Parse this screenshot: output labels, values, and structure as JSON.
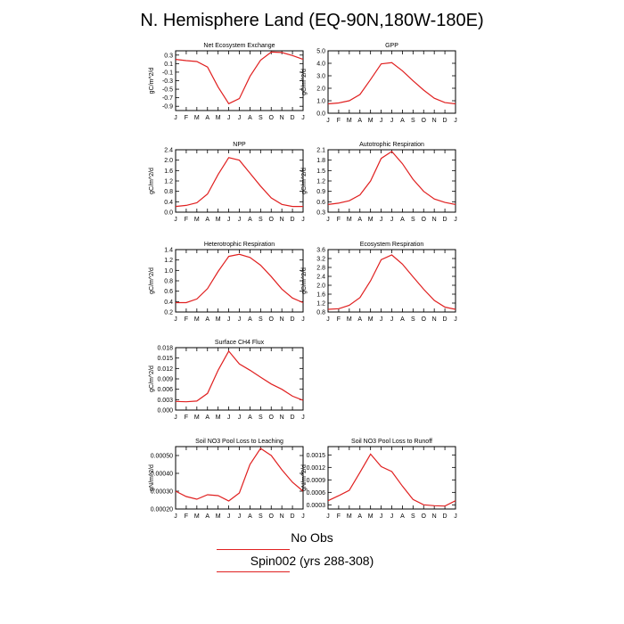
{
  "title": "N. Hemisphere Land (EQ-90N,180W-180E)",
  "legend": {
    "obs_label": "No Obs",
    "model_label": "Spin002 (yrs 288-308)",
    "model_color": "#e02020"
  },
  "chart_data": [
    {
      "type": "line",
      "title": "Net Ecosystem Exchange",
      "ylabel": "gC/m^2/d",
      "x": [
        "J",
        "F",
        "M",
        "A",
        "M",
        "J",
        "J",
        "A",
        "S",
        "O",
        "N",
        "D",
        "J"
      ],
      "ylim": [
        -1.0,
        0.4
      ],
      "yticks": [
        "0.3",
        "0.1",
        "-0.1",
        "-0.3",
        "-0.5",
        "-0.7",
        "-0.9"
      ],
      "ytick_values": [
        0.3,
        0.1,
        -0.1,
        -0.3,
        -0.5,
        -0.7,
        -0.9
      ],
      "series": [
        {
          "values": [
            0.2,
            0.17,
            0.15,
            0.02,
            -0.45,
            -0.84,
            -0.72,
            -0.2,
            0.18,
            0.37,
            0.36,
            0.29,
            0.2
          ]
        }
      ]
    },
    {
      "type": "line",
      "title": "GPP",
      "ylabel": "gC/m^2/d",
      "x": [
        "J",
        "F",
        "M",
        "A",
        "M",
        "J",
        "J",
        "A",
        "S",
        "O",
        "N",
        "D",
        "J"
      ],
      "ylim": [
        0.0,
        5.0
      ],
      "yticks": [
        "5.0",
        "4.0",
        "3.0",
        "2.0",
        "1.0",
        "0.0"
      ],
      "ytick_values": [
        5,
        4,
        3,
        2,
        1,
        0
      ],
      "series": [
        {
          "values": [
            0.75,
            0.82,
            1.0,
            1.5,
            2.7,
            3.95,
            4.05,
            3.4,
            2.6,
            1.85,
            1.2,
            0.85,
            0.75
          ]
        }
      ]
    },
    {
      "type": "line",
      "title": "NPP",
      "ylabel": "gC/m^2/d",
      "x": [
        "J",
        "F",
        "M",
        "A",
        "M",
        "J",
        "J",
        "A",
        "S",
        "O",
        "N",
        "D",
        "J"
      ],
      "ylim": [
        0.0,
        2.4
      ],
      "yticks": [
        "2.4",
        "2.0",
        "1.6",
        "1.2",
        "0.8",
        "0.4",
        "0.0"
      ],
      "ytick_values": [
        2.4,
        2.0,
        1.6,
        1.2,
        0.8,
        0.4,
        0.0
      ],
      "series": [
        {
          "values": [
            0.22,
            0.26,
            0.36,
            0.7,
            1.45,
            2.1,
            2.0,
            1.5,
            1.0,
            0.55,
            0.3,
            0.22,
            0.22
          ]
        }
      ]
    },
    {
      "type": "line",
      "title": "Autotrophic Respiration",
      "ylabel": "gC/m^2/d",
      "x": [
        "J",
        "F",
        "M",
        "A",
        "M",
        "J",
        "J",
        "A",
        "S",
        "O",
        "N",
        "D",
        "J"
      ],
      "ylim": [
        0.3,
        2.1
      ],
      "yticks": [
        "2.1",
        "1.8",
        "1.5",
        "1.2",
        "0.9",
        "0.6",
        "0.3"
      ],
      "ytick_values": [
        2.1,
        1.8,
        1.5,
        1.2,
        0.9,
        0.6,
        0.3
      ],
      "series": [
        {
          "values": [
            0.52,
            0.56,
            0.63,
            0.8,
            1.2,
            1.85,
            2.05,
            1.7,
            1.25,
            0.9,
            0.68,
            0.58,
            0.52
          ]
        }
      ]
    },
    {
      "type": "line",
      "title": "Heterotrophic Respiration",
      "ylabel": "gC/m^2/d",
      "x": [
        "J",
        "F",
        "M",
        "A",
        "M",
        "J",
        "J",
        "A",
        "S",
        "O",
        "N",
        "D",
        "J"
      ],
      "ylim": [
        0.2,
        1.4
      ],
      "yticks": [
        "1.4",
        "1.2",
        "1.0",
        "0.8",
        "0.6",
        "0.4",
        "0.2"
      ],
      "ytick_values": [
        1.4,
        1.2,
        1.0,
        0.8,
        0.6,
        0.4,
        0.2
      ],
      "series": [
        {
          "values": [
            0.38,
            0.38,
            0.45,
            0.65,
            0.98,
            1.27,
            1.31,
            1.25,
            1.1,
            0.88,
            0.64,
            0.47,
            0.38
          ]
        }
      ]
    },
    {
      "type": "line",
      "title": "Ecosystem Respiration",
      "ylabel": "gC/m^2/d",
      "x": [
        "J",
        "F",
        "M",
        "A",
        "M",
        "J",
        "J",
        "A",
        "S",
        "O",
        "N",
        "D",
        "J"
      ],
      "ylim": [
        0.8,
        3.6
      ],
      "yticks": [
        "3.6",
        "3.2",
        "2.8",
        "2.4",
        "2.0",
        "1.6",
        "1.2",
        "0.8"
      ],
      "ytick_values": [
        3.6,
        3.2,
        2.8,
        2.4,
        2.0,
        1.6,
        1.2,
        0.8
      ],
      "series": [
        {
          "values": [
            0.92,
            0.95,
            1.1,
            1.45,
            2.2,
            3.15,
            3.36,
            2.95,
            2.38,
            1.82,
            1.32,
            1.02,
            0.92
          ]
        }
      ]
    },
    {
      "type": "line",
      "title": "Surface CH4 Flux",
      "ylabel": "gC/m^2/d",
      "x": [
        "J",
        "F",
        "M",
        "A",
        "M",
        "J",
        "J",
        "A",
        "S",
        "O",
        "N",
        "D",
        "J"
      ],
      "ylim": [
        0.0,
        0.018
      ],
      "yticks": [
        "0.018",
        "0.015",
        "0.012",
        "0.009",
        "0.006",
        "0.003",
        "0.000"
      ],
      "ytick_values": [
        0.018,
        0.015,
        0.012,
        0.009,
        0.006,
        0.003,
        0.0
      ],
      "series": [
        {
          "values": [
            0.0025,
            0.0024,
            0.0026,
            0.0048,
            0.0115,
            0.017,
            0.0133,
            0.0115,
            0.0095,
            0.0075,
            0.006,
            0.004,
            0.0028
          ]
        }
      ]
    },
    {
      "type": "line",
      "title": "Soil NO3 Pool Loss to Leaching",
      "ylabel": "gN/m^2/d",
      "x": [
        "J",
        "F",
        "M",
        "A",
        "M",
        "J",
        "J",
        "A",
        "S",
        "O",
        "N",
        "D",
        "J"
      ],
      "ylim": [
        0.0002,
        0.00055
      ],
      "yticks": [
        "0.00050",
        "0.00040",
        "0.00030",
        "0.00020"
      ],
      "ytick_values": [
        0.0005,
        0.0004,
        0.0003,
        0.0002
      ],
      "series": [
        {
          "values": [
            0.0003,
            0.00027,
            0.000255,
            0.00028,
            0.000275,
            0.000245,
            0.00029,
            0.00045,
            0.00054,
            0.0005,
            0.00042,
            0.00035,
            0.0003
          ]
        }
      ]
    },
    {
      "type": "line",
      "title": "Soil NO3 Pool Loss to Runoff",
      "ylabel": "gN/m^2/d",
      "x": [
        "J",
        "F",
        "M",
        "A",
        "M",
        "J",
        "J",
        "A",
        "S",
        "O",
        "N",
        "D",
        "J"
      ],
      "ylim": [
        0.0002,
        0.0017
      ],
      "yticks": [
        "0.0015",
        "0.0012",
        "0.0009",
        "0.0006",
        "0.0003"
      ],
      "ytick_values": [
        0.0015,
        0.0012,
        0.0009,
        0.0006,
        0.0003
      ],
      "series": [
        {
          "values": [
            0.0004,
            0.00052,
            0.00065,
            0.00108,
            0.00152,
            0.00122,
            0.0011,
            0.00075,
            0.00043,
            0.0003,
            0.00028,
            0.00027,
            0.0004
          ]
        }
      ]
    }
  ]
}
